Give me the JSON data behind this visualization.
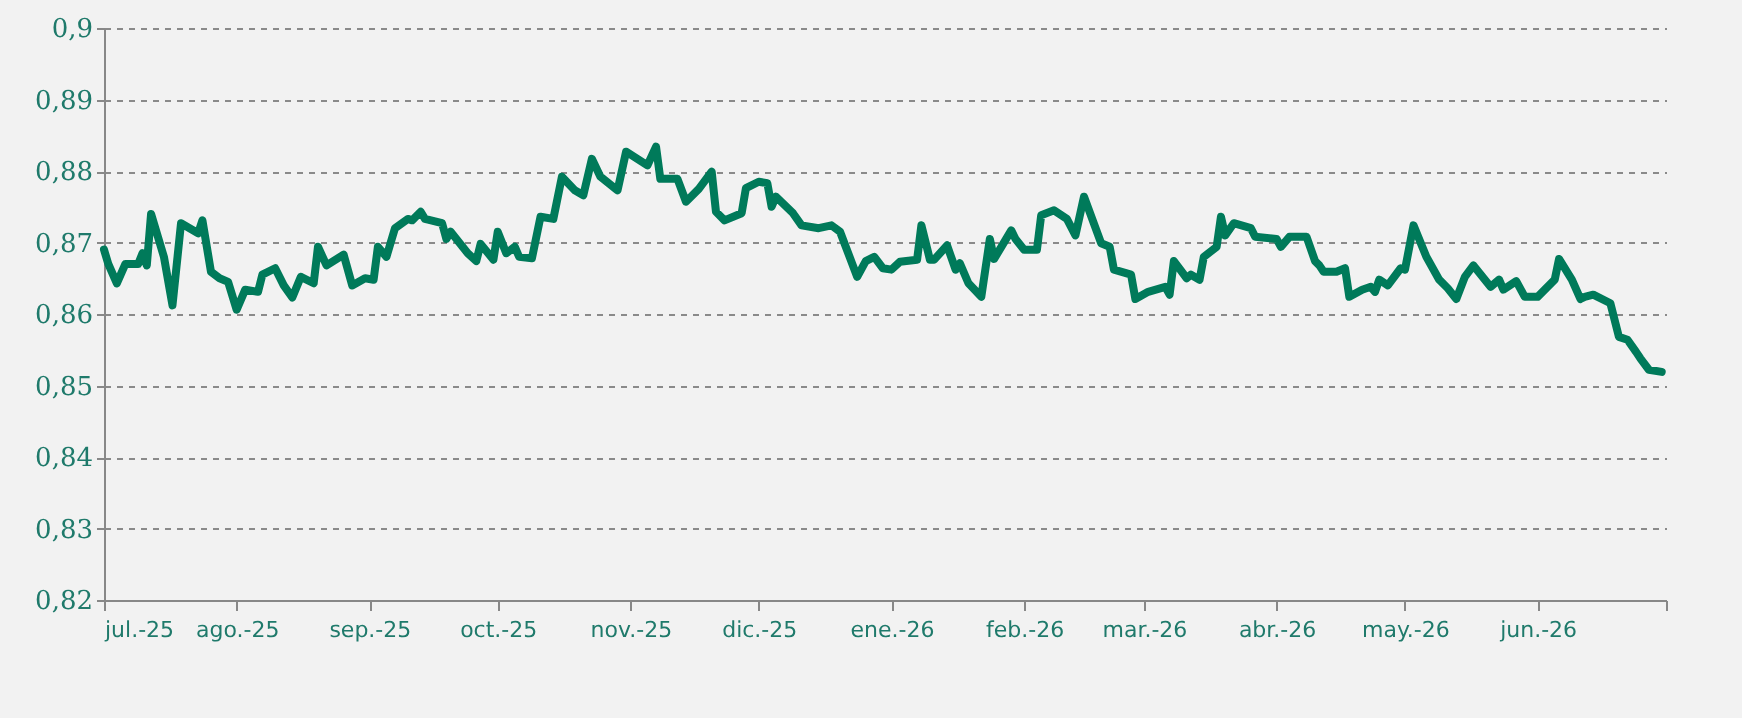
{
  "chart_data": {
    "type": "line",
    "x": [
      "2025-07-01",
      "2025-07-02",
      "2025-07-04",
      "2025-07-06",
      "2025-07-09",
      "2025-07-10",
      "2025-07-11",
      "2025-07-12",
      "2025-07-15",
      "2025-07-17",
      "2025-07-19",
      "2025-07-23",
      "2025-07-24",
      "2025-07-26",
      "2025-07-28",
      "2025-07-30",
      "2025-08-01",
      "2025-08-03",
      "2025-08-06",
      "2025-08-07",
      "2025-08-10",
      "2025-08-12",
      "2025-08-14",
      "2025-08-16",
      "2025-08-19",
      "2025-08-20",
      "2025-08-22",
      "2025-08-26",
      "2025-08-28",
      "2025-08-31",
      "2025-09-02",
      "2025-09-03",
      "2025-09-05",
      "2025-09-07",
      "2025-09-10",
      "2025-09-11",
      "2025-09-13",
      "2025-09-14",
      "2025-09-18",
      "2025-09-19",
      "2025-09-20",
      "2025-09-24",
      "2025-09-26",
      "2025-09-27",
      "2025-09-30",
      "2025-10-01",
      "2025-10-03",
      "2025-10-05",
      "2025-10-06",
      "2025-10-09",
      "2025-10-11",
      "2025-10-14",
      "2025-10-16",
      "2025-10-19",
      "2025-10-21",
      "2025-10-23",
      "2025-10-25",
      "2025-10-29",
      "2025-10-31",
      "2025-11-05",
      "2025-11-07",
      "2025-11-08",
      "2025-11-12",
      "2025-11-14",
      "2025-11-17",
      "2025-11-20",
      "2025-11-21",
      "2025-11-23",
      "2025-11-27",
      "2025-11-28",
      "2025-12-01",
      "2025-12-03",
      "2025-12-04",
      "2025-12-05",
      "2025-12-09",
      "2025-12-11",
      "2025-12-15",
      "2025-12-18",
      "2025-12-20",
      "2025-12-24",
      "2025-12-26",
      "2025-12-28",
      "2025-12-30",
      "2026-01-01",
      "2026-01-03",
      "2026-01-07",
      "2026-01-08",
      "2026-01-10",
      "2026-01-11",
      "2026-01-14",
      "2026-01-16",
      "2026-01-17",
      "2026-01-19",
      "2026-01-22",
      "2026-01-24",
      "2026-01-25",
      "2026-01-29",
      "2026-01-30",
      "2026-02-01",
      "2026-02-04",
      "2026-02-05",
      "2026-02-08",
      "2026-02-11",
      "2026-02-13",
      "2026-02-15",
      "2026-02-19",
      "2026-02-21",
      "2026-02-22",
      "2026-02-26",
      "2026-02-27",
      "2026-03-02",
      "2026-03-06",
      "2026-03-07",
      "2026-03-08",
      "2026-03-11",
      "2026-03-12",
      "2026-03-14",
      "2026-03-15",
      "2026-03-18",
      "2026-03-19",
      "2026-03-20",
      "2026-03-22",
      "2026-03-26",
      "2026-03-27",
      "2026-04-01",
      "2026-04-02",
      "2026-04-04",
      "2026-04-08",
      "2026-04-10",
      "2026-04-11",
      "2026-04-12",
      "2026-04-15",
      "2026-04-17",
      "2026-04-18",
      "2026-04-21",
      "2026-04-23",
      "2026-04-24",
      "2026-04-25",
      "2026-04-27",
      "2026-04-30",
      "2026-05-01",
      "2026-05-03",
      "2026-05-06",
      "2026-05-09",
      "2026-05-11",
      "2026-05-13",
      "2026-05-15",
      "2026-05-17",
      "2026-05-21",
      "2026-05-23",
      "2026-05-24",
      "2026-05-27",
      "2026-05-29",
      "2026-06-01",
      "2026-06-05",
      "2026-06-06",
      "2026-06-09",
      "2026-06-11",
      "2026-06-12",
      "2026-06-14",
      "2026-06-18",
      "2026-06-20",
      "2026-06-22",
      "2026-06-24",
      "2026-06-25",
      "2026-06-27",
      "2026-06-30"
    ],
    "series": [
      {
        "color": "#007a5a",
        "values": [
          0.869,
          0.867,
          0.8643,
          0.867,
          0.867,
          0.8685,
          0.8668,
          0.874,
          0.868,
          0.8612,
          0.8727,
          0.8713,
          0.8731,
          0.8659,
          0.865,
          0.8645,
          0.8606,
          0.8634,
          0.8631,
          0.8655,
          0.8664,
          0.864,
          0.8623,
          0.8652,
          0.8643,
          0.8694,
          0.8668,
          0.8683,
          0.864,
          0.865,
          0.8648,
          0.8694,
          0.868,
          0.872,
          0.8733,
          0.8731,
          0.8743,
          0.8733,
          0.8727,
          0.8705,
          0.8715,
          0.8685,
          0.8674,
          0.8698,
          0.8676,
          0.8715,
          0.8685,
          0.8694,
          0.868,
          0.8678,
          0.8736,
          0.8733,
          0.8792,
          0.8773,
          0.8766,
          0.8817,
          0.8792,
          0.8773,
          0.8827,
          0.8808,
          0.8834,
          0.8789,
          0.8789,
          0.8757,
          0.8775,
          0.8799,
          0.8743,
          0.8731,
          0.8741,
          0.8776,
          0.8785,
          0.8783,
          0.875,
          0.8764,
          0.8741,
          0.8724,
          0.872,
          0.8724,
          0.8715,
          0.8652,
          0.8674,
          0.868,
          0.8664,
          0.8662,
          0.8673,
          0.8676,
          0.8724,
          0.8676,
          0.8676,
          0.8696,
          0.8662,
          0.8671,
          0.8643,
          0.8624,
          0.8705,
          0.8677,
          0.8717,
          0.8705,
          0.869,
          0.869,
          0.8738,
          0.8745,
          0.8733,
          0.871,
          0.8764,
          0.8699,
          0.8694,
          0.8662,
          0.8655,
          0.8621,
          0.8631,
          0.8638,
          0.8627,
          0.8674,
          0.865,
          0.8655,
          0.8648,
          0.868,
          0.8694,
          0.8736,
          0.871,
          0.8727,
          0.872,
          0.8708,
          0.8705,
          0.8694,
          0.8708,
          0.8708,
          0.8674,
          0.8668,
          0.8659,
          0.8659,
          0.8664,
          0.8624,
          0.8634,
          0.8638,
          0.8631,
          0.8648,
          0.864,
          0.8664,
          0.8662,
          0.8724,
          0.868,
          0.8648,
          0.8636,
          0.8621,
          0.8652,
          0.8668,
          0.8638,
          0.8648,
          0.8634,
          0.8646,
          0.8624,
          0.8624,
          0.8648,
          0.8677,
          0.8648,
          0.8621,
          0.8624,
          0.8627,
          0.8615,
          0.8568,
          0.8564,
          0.8547,
          0.8538,
          0.8522,
          0.8519
        ]
      }
    ],
    "xlim": [
      "2025-07-01",
      "2026-07-01"
    ],
    "xticks": [
      {
        "value": "2025-07-01",
        "label": "jul.-25"
      },
      {
        "value": "2025-08-01",
        "label": "ago.-25"
      },
      {
        "value": "2025-09-01",
        "label": "sep.-25"
      },
      {
        "value": "2025-10-01",
        "label": "oct.-25"
      },
      {
        "value": "2025-11-01",
        "label": "nov.-25"
      },
      {
        "value": "2025-12-01",
        "label": "dic.-25"
      },
      {
        "value": "2026-01-01",
        "label": "ene.-26"
      },
      {
        "value": "2026-02-01",
        "label": "feb.-26"
      },
      {
        "value": "2026-03-01",
        "label": "mar.-26"
      },
      {
        "value": "2026-04-01",
        "label": "abr.-26"
      },
      {
        "value": "2026-05-01",
        "label": "may.-26"
      },
      {
        "value": "2026-06-01",
        "label": "jun.-26"
      },
      {
        "value": "2026-07-01",
        "label": null
      }
    ],
    "ylim": [
      0.82,
      0.9
    ],
    "yticks": [
      {
        "value": 0.82,
        "label": "0,82"
      },
      {
        "value": 0.83,
        "label": "0,83"
      },
      {
        "value": 0.84,
        "label": "0,84"
      },
      {
        "value": 0.85,
        "label": "0,85"
      },
      {
        "value": 0.86,
        "label": "0,86"
      },
      {
        "value": 0.87,
        "label": "0,87"
      },
      {
        "value": 0.88,
        "label": "0,88"
      },
      {
        "value": 0.89,
        "label": "0,89"
      },
      {
        "value": 0.9,
        "label": "0,9"
      }
    ],
    "grid": "y",
    "line_style": "solid"
  }
}
